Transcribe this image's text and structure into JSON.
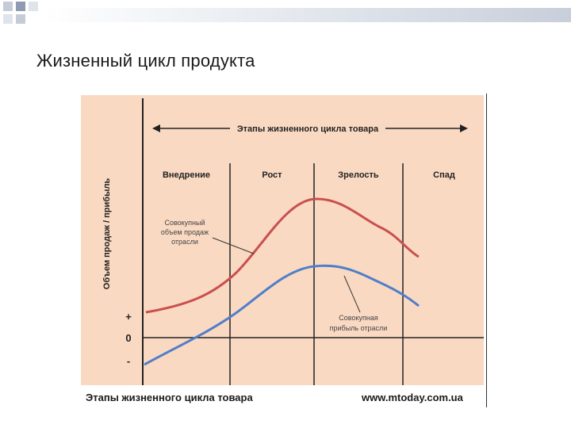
{
  "slide": {
    "title": "Жизненный цикл продукта"
  },
  "diagram": {
    "top_arrow_label": "Этапы жизненного цикла товара",
    "y_axis_label": "Объем продаж / прибыль",
    "stages": [
      "Внедрение",
      "Рост",
      "Зрелость",
      "Спад"
    ],
    "y_markers": [
      "+",
      "0",
      "-"
    ],
    "sales_annotation": [
      "Совокупный",
      "объем продаж",
      "отрасли"
    ],
    "profit_annotation": [
      "Совокупная",
      "прибыль отрасли"
    ],
    "colors": {
      "background": "#fad9c2",
      "sales_curve": "#c8504e",
      "profit_curve": "#4f7fc8",
      "lines": "#222222"
    }
  },
  "footer": {
    "left_caption": "Этапы жизненного цикла товара",
    "right_caption": "www.mtoday.com.ua"
  }
}
